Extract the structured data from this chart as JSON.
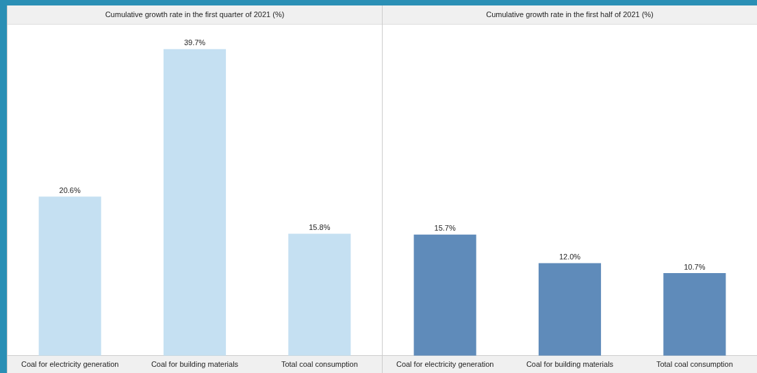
{
  "chart_data": [
    {
      "type": "bar",
      "title": "Cumulative growth rate in the first quarter of 2021 (%)",
      "categories": [
        "Coal for electricity generation",
        "Coal for building materials",
        "Total coal consumption"
      ],
      "values": [
        20.6,
        39.7,
        15.8
      ],
      "color": "#c5e0f2",
      "value_labels": [
        "20.6%",
        "39.7%",
        "15.8%"
      ],
      "grid": false,
      "legend": false,
      "tick_labels": "x"
    },
    {
      "type": "bar",
      "title": "Cumulative growth rate in the first half of 2021 (%)",
      "categories": [
        "Coal for electricity generation",
        "Coal for building materials",
        "Total coal consumption"
      ],
      "values": [
        15.7,
        12.0,
        10.7
      ],
      "color": "#5f8bba",
      "value_labels": [
        "15.7%",
        "12.0%",
        "10.7%"
      ],
      "grid": false,
      "legend": false,
      "tick_labels": "x"
    }
  ]
}
